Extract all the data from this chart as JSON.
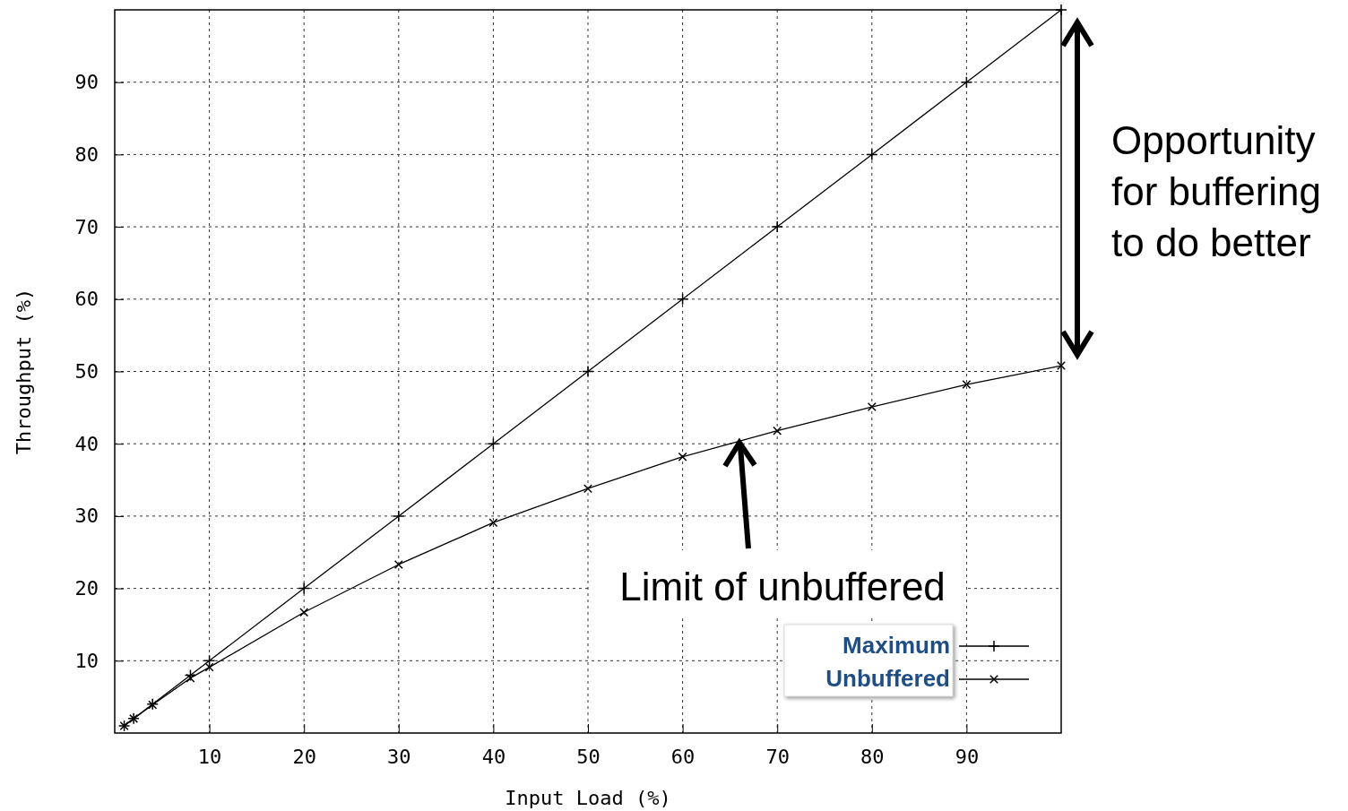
{
  "chart_data": {
    "type": "line",
    "xlabel": "Input Load (%)",
    "ylabel": "Throughput (%)",
    "x": [
      1,
      2,
      4,
      8,
      10,
      20,
      30,
      40,
      50,
      60,
      70,
      80,
      90,
      100
    ],
    "series": [
      {
        "name": "Maximum",
        "color": "#000000",
        "values": [
          1,
          2,
          4,
          8,
          10,
          20,
          30,
          40,
          50,
          60,
          70,
          80,
          90,
          100
        ]
      },
      {
        "name": "Unbuffered",
        "color": "#000000",
        "values": [
          1,
          2,
          3.9,
          7.6,
          9.1,
          16.7,
          23.3,
          29.1,
          33.8,
          38.2,
          41.8,
          45.1,
          48.2,
          50.8
        ]
      }
    ],
    "xlim": [
      0,
      100
    ],
    "ylim": [
      0,
      100
    ],
    "xticks": [
      10,
      20,
      30,
      40,
      50,
      60,
      70,
      80,
      90
    ],
    "yticks": [
      10,
      20,
      30,
      40,
      50,
      60,
      70,
      80,
      90
    ],
    "grid": true,
    "legend": "bottom right",
    "marker": "cross",
    "line_style": "solid",
    "annotations": [
      "Opportunity for buffering to do better",
      "Limit of unbuffered"
    ]
  }
}
